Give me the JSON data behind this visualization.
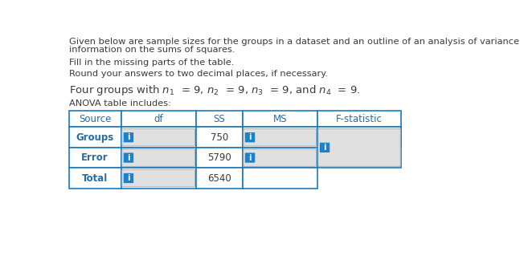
{
  "line1": "Given below are sample sizes for the groups in a dataset and an outline of an analysis of variance table with some",
  "line2": "information on the sums of squares.",
  "line3": "Fill in the missing parts of the table.",
  "line4": "Round your answers to two decimal places, if necessary.",
  "line5": "Four groups with $n_1$  = 9, $n_2$  = 9, $n_3$  = 9, and $n_4$  = 9.",
  "line6": "ANOVA table includes:",
  "col_headers": [
    "Source",
    "df",
    "SS",
    "MS",
    "F-statistic"
  ],
  "ss_values": [
    "750",
    "5790",
    "6540"
  ],
  "row_labels": [
    "Groups",
    "Error",
    "Total"
  ],
  "blue": "#1a7abf",
  "dark_text": "#3a3a3a",
  "blue_text": "#2a6ca0",
  "white": "#ffffff",
  "light_gray": "#e0e0e0",
  "icon_blue": "#1a82c8",
  "border_gray": "#b0b0b0"
}
